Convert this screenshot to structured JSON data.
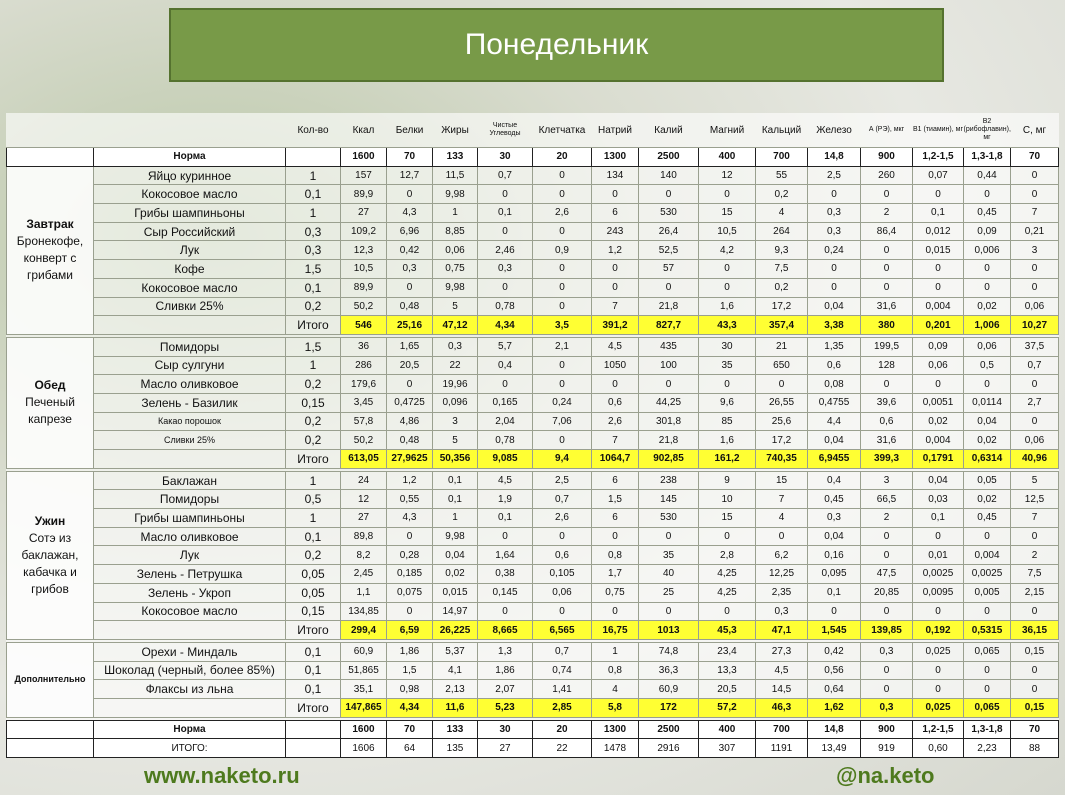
{
  "title": "Понедельник",
  "columns": [
    "Кол-во",
    "Ккал",
    "Белки",
    "Жиры",
    "Чистые Углеводы",
    "Клетчатка",
    "Натрий",
    "Калий",
    "Магний",
    "Кальций",
    "Железо",
    "А (РЭ), мкг",
    "B1 (тиамин), мг",
    "B2 (рибофлавин), мг",
    "С, мг"
  ],
  "norma": {
    "label": "Норма",
    "values": [
      "1600",
      "70",
      "133",
      "30",
      "20",
      "1300",
      "2500",
      "400",
      "700",
      "14,8",
      "900",
      "1,2-1,5",
      "1,3-1,8",
      "70"
    ]
  },
  "meals": [
    {
      "name": "Завтрак",
      "desc": "Бронекофе, конверт с грибами",
      "rows": [
        {
          "product": "Яйцо куринное",
          "qty": "1",
          "values": [
            "157",
            "12,7",
            "11,5",
            "0,7",
            "0",
            "134",
            "140",
            "12",
            "55",
            "2,5",
            "260",
            "0,07",
            "0,44",
            "0"
          ]
        },
        {
          "product": "Кокосовое масло",
          "qty": "0,1",
          "values": [
            "89,9",
            "0",
            "9,98",
            "0",
            "0",
            "0",
            "0",
            "0",
            "0,2",
            "0",
            "0",
            "0",
            "0",
            "0"
          ]
        },
        {
          "product": "Грибы шампиньоны",
          "qty": "1",
          "values": [
            "27",
            "4,3",
            "1",
            "0,1",
            "2,6",
            "6",
            "530",
            "15",
            "4",
            "0,3",
            "2",
            "0,1",
            "0,45",
            "7"
          ]
        },
        {
          "product": "Сыр Российский",
          "qty": "0,3",
          "values": [
            "109,2",
            "6,96",
            "8,85",
            "0",
            "0",
            "243",
            "26,4",
            "10,5",
            "264",
            "0,3",
            "86,4",
            "0,012",
            "0,09",
            "0,21"
          ]
        },
        {
          "product": "Лук",
          "qty": "0,3",
          "values": [
            "12,3",
            "0,42",
            "0,06",
            "2,46",
            "0,9",
            "1,2",
            "52,5",
            "4,2",
            "9,3",
            "0,24",
            "0",
            "0,015",
            "0,006",
            "3"
          ]
        },
        {
          "product": "Кофе",
          "qty": "1,5",
          "values": [
            "10,5",
            "0,3",
            "0,75",
            "0,3",
            "0",
            "0",
            "57",
            "0",
            "7,5",
            "0",
            "0",
            "0",
            "0",
            "0"
          ]
        },
        {
          "product": "Кокосовое масло",
          "qty": "0,1",
          "values": [
            "89,9",
            "0",
            "9,98",
            "0",
            "0",
            "0",
            "0",
            "0",
            "0,2",
            "0",
            "0",
            "0",
            "0",
            "0"
          ]
        },
        {
          "product": "Сливки 25%",
          "qty": "0,2",
          "values": [
            "50,2",
            "0,48",
            "5",
            "0,78",
            "0",
            "7",
            "21,8",
            "1,6",
            "17,2",
            "0,04",
            "31,6",
            "0,004",
            "0,02",
            "0,06"
          ]
        }
      ],
      "total": {
        "label": "Итого",
        "values": [
          "546",
          "25,16",
          "47,12",
          "4,34",
          "3,5",
          "391,2",
          "827,7",
          "43,3",
          "357,4",
          "3,38",
          "380",
          "0,201",
          "1,006",
          "10,27"
        ]
      }
    },
    {
      "name": "Обед",
      "desc": "Печеный капрезе",
      "rows": [
        {
          "product": "Помидоры",
          "qty": "1,5",
          "values": [
            "36",
            "1,65",
            "0,3",
            "5,7",
            "2,1",
            "4,5",
            "435",
            "30",
            "21",
            "1,35",
            "199,5",
            "0,09",
            "0,06",
            "37,5"
          ]
        },
        {
          "product": "Сыр сулгуни",
          "qty": "1",
          "values": [
            "286",
            "20,5",
            "22",
            "0,4",
            "0",
            "1050",
            "100",
            "35",
            "650",
            "0,6",
            "128",
            "0,06",
            "0,5",
            "0,7"
          ]
        },
        {
          "product": "Масло оливковое",
          "qty": "0,2",
          "values": [
            "179,6",
            "0",
            "19,96",
            "0",
            "0",
            "0",
            "0",
            "0",
            "0",
            "0,08",
            "0",
            "0",
            "0",
            "0"
          ]
        },
        {
          "product": "Зелень - Базилик",
          "qty": "0,15",
          "values": [
            "3,45",
            "0,4725",
            "0,096",
            "0,165",
            "0,24",
            "0,6",
            "44,25",
            "9,6",
            "26,55",
            "0,4755",
            "39,6",
            "0,0051",
            "0,0114",
            "2,7"
          ]
        },
        {
          "product": "Какао порошок",
          "qty": "0,2",
          "small": true,
          "values": [
            "57,8",
            "4,86",
            "3",
            "2,04",
            "7,06",
            "2,6",
            "301,8",
            "85",
            "25,6",
            "4,4",
            "0,6",
            "0,02",
            "0,04",
            "0"
          ]
        },
        {
          "product": "Сливки 25%",
          "qty": "0,2",
          "small": true,
          "values": [
            "50,2",
            "0,48",
            "5",
            "0,78",
            "0",
            "7",
            "21,8",
            "1,6",
            "17,2",
            "0,04",
            "31,6",
            "0,004",
            "0,02",
            "0,06"
          ]
        }
      ],
      "total": {
        "label": "Итого",
        "values": [
          "613,05",
          "27,9625",
          "50,356",
          "9,085",
          "9,4",
          "1064,7",
          "902,85",
          "161,2",
          "740,35",
          "6,9455",
          "399,3",
          "0,1791",
          "0,6314",
          "40,96"
        ]
      }
    },
    {
      "name": "Ужин",
      "desc": "Сотэ из баклажан, кабачка и грибов",
      "rows": [
        {
          "product": "Баклажан",
          "qty": "1",
          "values": [
            "24",
            "1,2",
            "0,1",
            "4,5",
            "2,5",
            "6",
            "238",
            "9",
            "15",
            "0,4",
            "3",
            "0,04",
            "0,05",
            "5"
          ]
        },
        {
          "product": "Помидоры",
          "qty": "0,5",
          "values": [
            "12",
            "0,55",
            "0,1",
            "1,9",
            "0,7",
            "1,5",
            "145",
            "10",
            "7",
            "0,45",
            "66,5",
            "0,03",
            "0,02",
            "12,5"
          ]
        },
        {
          "product": "Грибы шампиньоны",
          "qty": "1",
          "values": [
            "27",
            "4,3",
            "1",
            "0,1",
            "2,6",
            "6",
            "530",
            "15",
            "4",
            "0,3",
            "2",
            "0,1",
            "0,45",
            "7"
          ]
        },
        {
          "product": "Масло оливковое",
          "qty": "0,1",
          "values": [
            "89,8",
            "0",
            "9,98",
            "0",
            "0",
            "0",
            "0",
            "0",
            "0",
            "0,04",
            "0",
            "0",
            "0",
            "0"
          ]
        },
        {
          "product": "Лук",
          "qty": "0,2",
          "values": [
            "8,2",
            "0,28",
            "0,04",
            "1,64",
            "0,6",
            "0,8",
            "35",
            "2,8",
            "6,2",
            "0,16",
            "0",
            "0,01",
            "0,004",
            "2"
          ]
        },
        {
          "product": "Зелень - Петрушка",
          "qty": "0,05",
          "values": [
            "2,45",
            "0,185",
            "0,02",
            "0,38",
            "0,105",
            "1,7",
            "40",
            "4,25",
            "12,25",
            "0,095",
            "47,5",
            "0,0025",
            "0,0025",
            "7,5"
          ]
        },
        {
          "product": "Зелень - Укроп",
          "qty": "0,05",
          "values": [
            "1,1",
            "0,075",
            "0,015",
            "0,145",
            "0,06",
            "0,75",
            "25",
            "4,25",
            "2,35",
            "0,1",
            "20,85",
            "0,0095",
            "0,005",
            "2,15"
          ]
        },
        {
          "product": "Кокосовое масло",
          "qty": "0,15",
          "values": [
            "134,85",
            "0",
            "14,97",
            "0",
            "0",
            "0",
            "0",
            "0",
            "0,3",
            "0",
            "0",
            "0",
            "0",
            "0"
          ]
        }
      ],
      "total": {
        "label": "Итого",
        "values": [
          "299,4",
          "6,59",
          "26,225",
          "8,665",
          "6,565",
          "16,75",
          "1013",
          "45,3",
          "47,1",
          "1,545",
          "139,85",
          "0,192",
          "0,5315",
          "36,15"
        ]
      }
    },
    {
      "name": "Дополнительно",
      "desc": "",
      "rows": [
        {
          "product": "Орехи - Миндаль",
          "qty": "0,1",
          "values": [
            "60,9",
            "1,86",
            "5,37",
            "1,3",
            "0,7",
            "1",
            "74,8",
            "23,4",
            "27,3",
            "0,42",
            "0,3",
            "0,025",
            "0,065",
            "0,15"
          ]
        },
        {
          "product": "Шоколад (черный, более 85%)",
          "qty": "0,1",
          "values": [
            "51,865",
            "1,5",
            "4,1",
            "1,86",
            "0,74",
            "0,8",
            "36,3",
            "13,3",
            "4,5",
            "0,56",
            "0",
            "0",
            "0",
            "0"
          ]
        },
        {
          "product": "Флаксы из льна",
          "qty": "0,1",
          "values": [
            "35,1",
            "0,98",
            "2,13",
            "2,07",
            "1,41",
            "4",
            "60,9",
            "20,5",
            "14,5",
            "0,64",
            "0",
            "0",
            "0",
            "0"
          ]
        }
      ],
      "total": {
        "label": "Итого",
        "values": [
          "147,865",
          "4,34",
          "11,6",
          "5,23",
          "2,85",
          "5,8",
          "172",
          "57,2",
          "46,3",
          "1,62",
          "0,3",
          "0,025",
          "0,065",
          "0,15"
        ]
      }
    }
  ],
  "grand_total": {
    "label": "ИТОГО:",
    "values": [
      "1606",
      "64",
      "135",
      "27",
      "22",
      "1478",
      "2916",
      "307",
      "1191",
      "13,49",
      "919",
      "0,60",
      "2,23",
      "88"
    ]
  },
  "footer": {
    "website": "www.naketo.ru",
    "handle": "@na.keto"
  }
}
